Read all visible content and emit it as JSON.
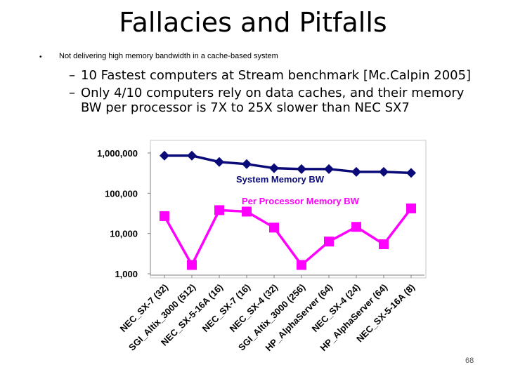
{
  "slide": {
    "title": "Fallacies and Pitfalls",
    "bullet": "Not delivering high memory bandwidth in a cache-based system",
    "sub_bullets": [
      "10 Fastest computers at Stream benchmark [Mc.Calpin 2005]",
      "Only 4/10 computers rely on data caches, and their memory BW per processor is 7X to 25X slower than NEC SX7"
    ],
    "dash": "–",
    "bullet_marker": "•",
    "page_number": "68"
  },
  "chart_data": {
    "type": "line",
    "yscale": "log",
    "ylim": [
      1000,
      1000000
    ],
    "yticks": [
      {
        "value": 1000,
        "label": "1,000"
      },
      {
        "value": 10000,
        "label": "10,000"
      },
      {
        "value": 100000,
        "label": "100,000"
      },
      {
        "value": 1000000,
        "label": "1,000,000"
      }
    ],
    "categories": [
      "NEC_SX-7 (32)",
      "SGI_Altix_3000 (512)",
      "NEC_SX-5-16A (16)",
      "NEC_SX-7 (16)",
      "NEC_SX-4 (32)",
      "SGI_Altix_3000 (256)",
      "HP_AlphaServer (64)",
      "NEC_SX-4 (24)",
      "HP_AlphaServer (64)",
      "NEC_SX-5-16A (8)"
    ],
    "series": [
      {
        "name": "System Memory BW",
        "color": "#0a0a78",
        "marker": "diamond",
        "values": [
          860000,
          860000,
          600000,
          530000,
          420000,
          400000,
          400000,
          340000,
          340000,
          320000
        ]
      },
      {
        "name": "Per Processor Memory BW",
        "color": "#ff00ff",
        "marker": "square",
        "values": [
          27000,
          1650,
          38000,
          35000,
          14000,
          1650,
          6300,
          14600,
          5400,
          42000
        ]
      }
    ],
    "grid": false,
    "legend": "inline labels"
  }
}
